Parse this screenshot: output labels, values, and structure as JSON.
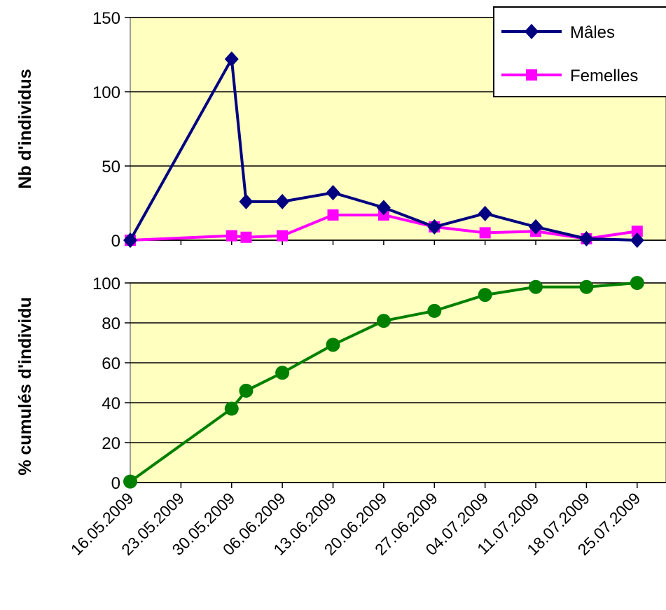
{
  "colors": {
    "plot_background": "#FFFFC0",
    "grid": "#000000",
    "males": "#000080",
    "females": "#FF00FF",
    "cumulative": "#008000"
  },
  "chart_data": [
    {
      "type": "line",
      "ylabel": "Nb d'individus",
      "ylim": [
        0,
        150
      ],
      "yticks": [
        "0",
        "50",
        "100",
        "150"
      ],
      "grid": true,
      "legend_position": "top-right",
      "x": [
        "16.05.2009",
        "30.05.2009",
        "01.06.2009",
        "06.06.2009",
        "13.06.2009",
        "20.06.2009",
        "27.06.2009",
        "04.07.2009",
        "11.07.2009",
        "18.07.2009",
        "25.07.2009"
      ],
      "series": [
        {
          "name": "Mâles",
          "marker": "diamond",
          "values": [
            0,
            122,
            26,
            26,
            32,
            22,
            9,
            18,
            9,
            1,
            0
          ]
        },
        {
          "name": "Femelles",
          "marker": "square",
          "values": [
            0,
            3,
            2,
            3,
            17,
            17,
            9,
            5,
            6,
            1,
            6
          ]
        }
      ]
    },
    {
      "type": "line",
      "ylabel": "% cumulés d'individu",
      "ylim": [
        0,
        100
      ],
      "yticks": [
        "0",
        "20",
        "40",
        "60",
        "80",
        "100"
      ],
      "grid": true,
      "x": [
        "16.05.2009",
        "30.05.2009",
        "01.06.2009",
        "06.06.2009",
        "13.06.2009",
        "20.06.2009",
        "27.06.2009",
        "04.07.2009",
        "11.07.2009",
        "18.07.2009",
        "25.07.2009"
      ],
      "series": [
        {
          "marker": "circle",
          "values": [
            0.5,
            37,
            46,
            55,
            69,
            81,
            86,
            94,
            98,
            98,
            100
          ]
        }
      ],
      "xtick_labels": [
        "16.05.2009",
        "23.05.2009",
        "30.05.2009",
        "06.06.2009",
        "13.06.2009",
        "20.06.2009",
        "27.06.2009",
        "04.07.2009",
        "11.07.2009",
        "18.07.2009",
        "25.07.2009"
      ]
    }
  ]
}
